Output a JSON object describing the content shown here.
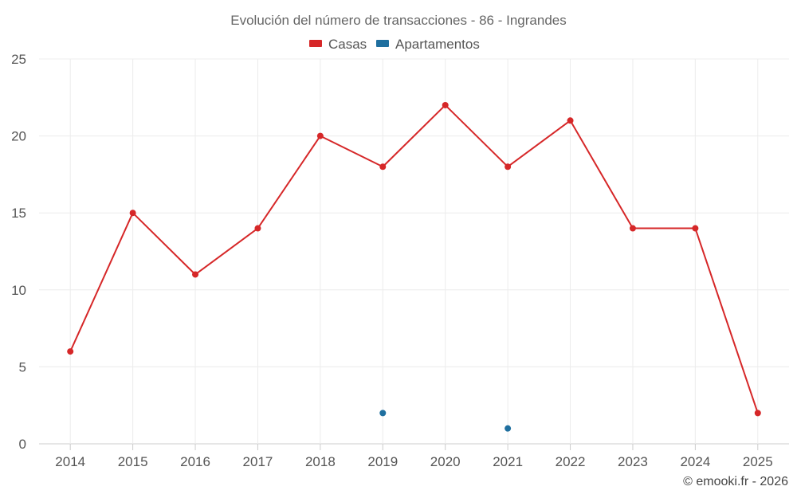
{
  "chart_data": {
    "type": "line",
    "title": "Evolución del número de transacciones - 86 - Ingrandes",
    "categories": [
      "2014",
      "2015",
      "2016",
      "2017",
      "2018",
      "2019",
      "2020",
      "2021",
      "2022",
      "2023",
      "2024",
      "2025"
    ],
    "ylim": [
      0,
      25
    ],
    "yticks": [
      0,
      5,
      10,
      15,
      20,
      25
    ],
    "ytick_labels": [
      "0",
      "5",
      "10",
      "15",
      "20",
      "25"
    ],
    "xlabel": "",
    "ylabel": "",
    "grid": true,
    "legend_position": "top-center",
    "series": [
      {
        "name": "Casas",
        "color": "#d62728",
        "values": [
          6,
          15,
          11,
          14,
          20,
          18,
          22,
          18,
          21,
          14,
          14,
          2
        ]
      },
      {
        "name": "Apartamentos",
        "color": "#1f6f9f",
        "values": [
          null,
          null,
          null,
          null,
          null,
          2,
          null,
          1,
          null,
          null,
          null,
          null
        ]
      }
    ]
  },
  "credit": "© emooki.fr - 2026"
}
